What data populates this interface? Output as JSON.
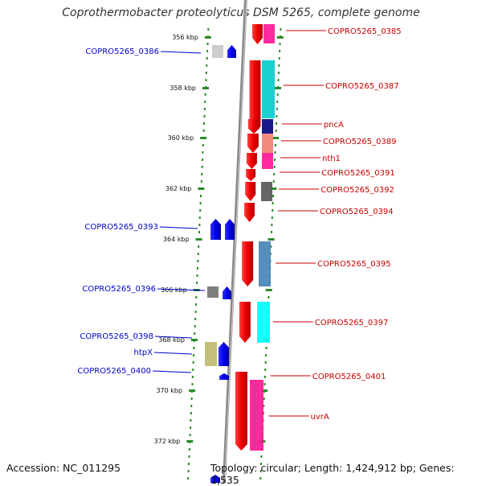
{
  "title": "Coprothermobacter proteolyticus DSM 5265, complete genome",
  "footer": {
    "accession": "Accession: NC_011295",
    "topology": "Topology: circular; Length: 1,424,912 bp; Genes: 1,535"
  },
  "scale_unit": "kbp",
  "ruler_ticks": [
    356,
    358,
    360,
    362,
    364,
    366,
    368,
    370,
    372
  ],
  "genes_left": [
    {
      "label": "COPRO5265_0386",
      "color": "#0000c8"
    },
    {
      "label": "COPRO5265_0393",
      "color": "#0000c8"
    },
    {
      "label": "COPRO5265_0396",
      "color": "#0000c8"
    },
    {
      "label": "COPRO5265_0398",
      "color": "#0000c8"
    },
    {
      "label": "htpX",
      "color": "#0000c8"
    },
    {
      "label": "COPRO5265_0400",
      "color": "#0000c8"
    }
  ],
  "genes_right": [
    {
      "label": "COPRO5265_0385",
      "color": "#c80000"
    },
    {
      "label": "COPRO5265_0387",
      "color": "#c80000"
    },
    {
      "label": "pncA",
      "color": "#c80000"
    },
    {
      "label": "COPRO5265_0389",
      "color": "#c80000"
    },
    {
      "label": "nth1",
      "color": "#c80000"
    },
    {
      "label": "COPRO5265_0391",
      "color": "#c80000"
    },
    {
      "label": "COPRO5265_0392",
      "color": "#c80000"
    },
    {
      "label": "COPRO5265_0394",
      "color": "#c80000"
    },
    {
      "label": "COPRO5265_0395",
      "color": "#c80000"
    },
    {
      "label": "COPRO5265_0397",
      "color": "#c80000"
    },
    {
      "label": "COPRO5265_0401",
      "color": "#c80000"
    },
    {
      "label": "uvrA",
      "color": "#c80000"
    }
  ],
  "colors": {
    "forward_strand": "#ee0000",
    "reverse_strand": "#0000ee",
    "backbone": "#8a8a8a",
    "ruler_dots": "#2a8a2a"
  }
}
